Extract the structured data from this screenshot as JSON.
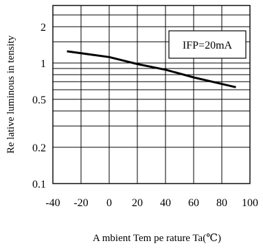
{
  "chart_data": {
    "type": "line",
    "title": "",
    "xlabel": "A mbient Tem pe rature Ta(℃)",
    "ylabel": "Re lative luminous in tensity",
    "xlim": [
      -40,
      100
    ],
    "ylim": [
      0.1,
      3
    ],
    "yscale": "log",
    "grid": true,
    "x_ticks": [
      -40,
      -20,
      0,
      20,
      40,
      60,
      80,
      100
    ],
    "x_tick_labels": [
      "-40",
      "-20",
      "0",
      "20",
      "40",
      "60",
      "80",
      "100"
    ],
    "y_ticks": [
      0.1,
      0.2,
      0.5,
      1,
      2
    ],
    "y_tick_labels": [
      "0.1",
      "0.2",
      "0.5",
      "1",
      "2"
    ],
    "y_minor_gridlines": [
      0.3,
      0.4,
      0.6,
      0.7,
      0.8,
      0.9,
      1.5,
      2.5
    ],
    "legend_box": {
      "text": "IFP=20mA",
      "placement": "top-right"
    },
    "series": [
      {
        "x": [
          -30,
          0,
          20,
          40,
          60,
          80,
          90
        ],
        "y": [
          1.25,
          1.12,
          0.98,
          0.88,
          0.76,
          0.67,
          0.63
        ]
      }
    ]
  }
}
